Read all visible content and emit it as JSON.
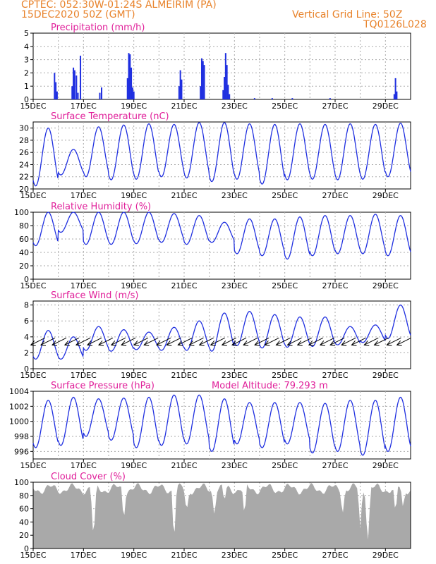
{
  "header": {
    "line1_left": "CPTEC:   052:30W-01:24S   ALMEIRIM (PA)",
    "line2_left": "15DEC2020 50Z (GMT)",
    "line1_right": "Vertical Grid Line: 50Z",
    "line2_right": "TQ0126L028"
  },
  "colors": {
    "header": "#e8822a",
    "panel_title": "#e0209a",
    "series": "#1f2fe0",
    "wind_arrow": "#000000",
    "cloud_fill": "#a9a9a9",
    "grid": "#aaaaaa"
  },
  "chart_data": [
    {
      "type": "bar",
      "title": "Precipitation (mm/h)",
      "x_tick_labels": [
        "15DEC",
        "17DEC",
        "19DEC",
        "21DEC",
        "23DEC",
        "25DEC",
        "27DEC",
        "29DEC"
      ],
      "x_range_days": [
        15,
        30
      ],
      "ylim": [
        0,
        5
      ],
      "y_ticks": [
        0,
        1,
        2,
        3,
        4,
        5
      ],
      "events": [
        {
          "day": 15.85,
          "value": 2.0
        },
        {
          "day": 15.9,
          "value": 1.3
        },
        {
          "day": 15.95,
          "value": 0.6
        },
        {
          "day": 16.55,
          "value": 1.0
        },
        {
          "day": 16.6,
          "value": 2.4
        },
        {
          "day": 16.65,
          "value": 2.2
        },
        {
          "day": 16.72,
          "value": 1.8
        },
        {
          "day": 16.78,
          "value": 0.5
        },
        {
          "day": 16.88,
          "value": 3.3
        },
        {
          "day": 17.65,
          "value": 0.5
        },
        {
          "day": 17.72,
          "value": 0.9
        },
        {
          "day": 18.75,
          "value": 1.6
        },
        {
          "day": 18.8,
          "value": 3.5
        },
        {
          "day": 18.85,
          "value": 3.4
        },
        {
          "day": 18.9,
          "value": 2.4
        },
        {
          "day": 18.95,
          "value": 0.9
        },
        {
          "day": 19.0,
          "value": 0.6
        },
        {
          "day": 20.8,
          "value": 1.0
        },
        {
          "day": 20.85,
          "value": 2.2
        },
        {
          "day": 20.9,
          "value": 1.5
        },
        {
          "day": 21.65,
          "value": 1.0
        },
        {
          "day": 21.7,
          "value": 3.1
        },
        {
          "day": 21.75,
          "value": 2.9
        },
        {
          "day": 21.8,
          "value": 2.6
        },
        {
          "day": 22.55,
          "value": 0.7
        },
        {
          "day": 22.6,
          "value": 1.7
        },
        {
          "day": 22.65,
          "value": 3.5
        },
        {
          "day": 22.7,
          "value": 2.6
        },
        {
          "day": 22.75,
          "value": 1.1
        },
        {
          "day": 22.8,
          "value": 0.4
        },
        {
          "day": 23.8,
          "value": 0.1
        },
        {
          "day": 24.5,
          "value": 0.1
        },
        {
          "day": 25.3,
          "value": 0.1
        },
        {
          "day": 26.8,
          "value": 0.1
        },
        {
          "day": 29.35,
          "value": 0.4
        },
        {
          "day": 29.4,
          "value": 1.6
        },
        {
          "day": 29.45,
          "value": 0.6
        }
      ]
    },
    {
      "type": "line",
      "title": "Surface Temperature (nC)",
      "x_tick_labels": [
        "15DEC",
        "17DEC",
        "19DEC",
        "21DEC",
        "23DEC",
        "25DEC",
        "27DEC",
        "29DEC"
      ],
      "x_range_days": [
        15,
        30
      ],
      "ylim": [
        20,
        31
      ],
      "y_ticks": [
        20,
        22,
        24,
        26,
        28,
        30
      ],
      "daily_max": [
        30.0,
        26.5,
        30.2,
        30.5,
        30.7,
        30.6,
        30.9,
        30.9,
        30.7,
        30.6,
        30.7,
        30.6,
        30.7,
        30.6,
        30.8
      ],
      "daily_min": [
        20.5,
        22.3,
        22.0,
        21.5,
        21.6,
        22.0,
        21.8,
        21.2,
        21.6,
        20.8,
        21.5,
        21.6,
        21.5,
        21.6,
        22.0
      ]
    },
    {
      "type": "line",
      "title": "Relative Humidity (%)",
      "x_tick_labels": [
        "15DEC",
        "17DEC",
        "19DEC",
        "21DEC",
        "23DEC",
        "25DEC",
        "27DEC",
        "29DEC"
      ],
      "x_range_days": [
        15,
        30
      ],
      "ylim": [
        0,
        100
      ],
      "y_ticks": [
        0,
        20,
        40,
        60,
        80,
        100
      ],
      "daily_max": [
        100,
        100,
        100,
        100,
        100,
        98,
        95,
        85,
        90,
        90,
        93,
        95,
        95,
        97,
        95
      ],
      "daily_min": [
        50,
        70,
        52,
        52,
        53,
        55,
        52,
        55,
        38,
        35,
        30,
        35,
        38,
        38,
        35
      ]
    },
    {
      "type": "line",
      "title": "Surface Wind (m/s)",
      "x_tick_labels": [
        "15DEC",
        "17DEC",
        "19DEC",
        "21DEC",
        "23DEC",
        "25DEC",
        "27DEC",
        "29DEC"
      ],
      "x_range_days": [
        15,
        30
      ],
      "ylim": [
        0,
        8.5
      ],
      "y_ticks": [
        0,
        2,
        4,
        6,
        8
      ],
      "daily_max": [
        4.8,
        4.0,
        5.3,
        4.9,
        4.6,
        5.2,
        6.0,
        7.0,
        7.2,
        6.8,
        6.5,
        6.5,
        5.3,
        5.5,
        8.0
      ],
      "daily_min": [
        1.2,
        1.2,
        2.3,
        2.2,
        2.4,
        2.3,
        2.3,
        2.2,
        2.9,
        2.6,
        2.7,
        2.8,
        3.0,
        3.3,
        3.8
      ],
      "arrow_days": [
        15.3,
        15.7,
        16.15,
        16.65,
        17.1,
        17.55,
        18.0,
        18.5,
        18.9,
        19.4,
        19.8,
        20.3,
        20.7,
        21.15,
        21.6,
        22.0,
        22.45,
        22.9,
        23.3,
        23.75,
        24.2,
        24.6,
        25.05,
        25.5,
        25.9,
        26.35,
        26.8,
        27.2,
        27.65,
        28.05,
        28.55,
        28.95,
        29.45,
        29.85
      ]
    },
    {
      "type": "line",
      "title": "Surface Pressure (hPa)",
      "annotation": "Model Altitude: 79.293 m",
      "x_tick_labels": [
        "15DEC",
        "17DEC",
        "19DEC",
        "21DEC",
        "23DEC",
        "25DEC",
        "27DEC",
        "29DEC"
      ],
      "x_range_days": [
        15,
        30
      ],
      "ylim": [
        995,
        1004
      ],
      "y_ticks": [
        996,
        998,
        1000,
        1002,
        1004
      ],
      "daily_max": [
        1002.8,
        1003.2,
        1003.0,
        1003.1,
        1003.2,
        1003.5,
        1003.5,
        1003.0,
        1002.5,
        1002.5,
        1002.5,
        1002.4,
        1002.8,
        1002.8,
        1003.2
      ],
      "daily_min": [
        996.5,
        996.8,
        998.0,
        997.5,
        996.5,
        996.8,
        997.0,
        996.0,
        997.0,
        996.5,
        997.0,
        995.8,
        996.0,
        995.5,
        996.0
      ]
    },
    {
      "type": "area",
      "title": "Cloud Cover (%)",
      "x_tick_labels": [
        "15DEC",
        "17DEC",
        "19DEC",
        "21DEC",
        "23DEC",
        "25DEC",
        "27DEC",
        "29DEC"
      ],
      "x_range_days": [
        15,
        30
      ],
      "ylim": [
        0,
        100
      ],
      "y_ticks": [
        0,
        20,
        40,
        60,
        80,
        100
      ],
      "baseline": 90,
      "dips": [
        {
          "day": 17.4,
          "value": 10,
          "width": 0.12
        },
        {
          "day": 18.6,
          "value": 40,
          "width": 0.1
        },
        {
          "day": 20.6,
          "value": 5,
          "width": 0.1
        },
        {
          "day": 21.1,
          "value": 55,
          "width": 0.12
        },
        {
          "day": 22.2,
          "value": 48,
          "width": 0.1
        },
        {
          "day": 22.6,
          "value": 70,
          "width": 0.1
        },
        {
          "day": 23.4,
          "value": 45,
          "width": 0.1
        },
        {
          "day": 27.3,
          "value": 50,
          "width": 0.1
        },
        {
          "day": 28.0,
          "value": 30,
          "width": 0.1
        },
        {
          "day": 28.3,
          "value": 5,
          "width": 0.12
        },
        {
          "day": 29.4,
          "value": 50,
          "width": 0.1
        },
        {
          "day": 29.7,
          "value": 60,
          "width": 0.1
        }
      ]
    }
  ]
}
